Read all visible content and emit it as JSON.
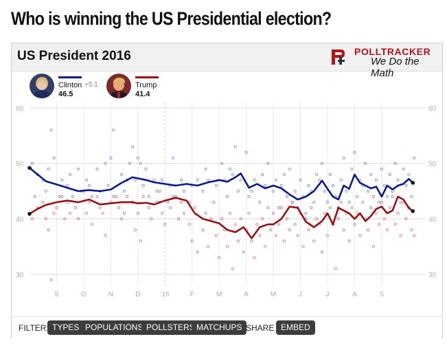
{
  "headline": "Who is winning the US Presidential election?",
  "card": {
    "title": "US President 2016",
    "logo": {
      "name": "POLLTRACKER",
      "tagline": "We Do the Math"
    }
  },
  "candidates": [
    {
      "name": "Clinton",
      "value": "46.5",
      "lead": "+5.1",
      "color": "#0b1a8c",
      "avatar_color": "#5a6a8a",
      "icon": "clinton-avatar"
    },
    {
      "name": "Trump",
      "value": "41.4",
      "lead": "",
      "color": "#9b0e12",
      "avatar_color": "#b7784f",
      "icon": "trump-avatar"
    }
  ],
  "filter_bar": {
    "filter_label": "FILTER:",
    "filters": [
      "TYPES",
      "POPULATIONS",
      "POLLSTERS",
      "MATCHUPS"
    ],
    "share_label": "SHARE :",
    "share_button": "EMBED"
  },
  "chart_data": {
    "type": "line",
    "title": "US President 2016",
    "ylim": [
      28,
      61
    ],
    "yticks": [
      30,
      40,
      50,
      60
    ],
    "grid": true,
    "xlim": [
      0,
      14.6
    ],
    "x_ticks": [
      {
        "x": 1,
        "label": "S"
      },
      {
        "x": 2,
        "label": "O"
      },
      {
        "x": 3,
        "label": "N"
      },
      {
        "x": 4,
        "label": "D"
      },
      {
        "x": 5,
        "label": "'16"
      },
      {
        "x": 6,
        "label": "F"
      },
      {
        "x": 7,
        "label": "M"
      },
      {
        "x": 8,
        "label": "A"
      },
      {
        "x": 9,
        "label": "M"
      },
      {
        "x": 10,
        "label": "J"
      },
      {
        "x": 11,
        "label": "J"
      },
      {
        "x": 12,
        "label": "A"
      },
      {
        "x": 13,
        "label": "S"
      }
    ],
    "series": [
      {
        "name": "Clinton",
        "color": "#0b1a8c",
        "x": [
          0,
          0.3,
          0.6,
          1,
          1.4,
          1.8,
          2.2,
          2.6,
          3,
          3.4,
          3.8,
          4,
          4.3,
          4.6,
          5,
          5.4,
          5.8,
          6.2,
          6.6,
          7,
          7.3,
          7.6,
          7.8,
          8.1,
          8.4,
          8.7,
          9,
          9.3,
          9.6,
          9.9,
          10.2,
          10.5,
          10.8,
          11,
          11.2,
          11.4,
          11.6,
          11.8,
          12,
          12.2,
          12.4,
          12.6,
          12.8,
          13,
          13.2,
          13.4,
          13.6,
          13.8,
          14.0,
          14.15
        ],
        "values": [
          49.2,
          48.0,
          46.8,
          46.2,
          45.6,
          45.0,
          45.2,
          45.0,
          45.3,
          46.5,
          47.5,
          47.3,
          47.0,
          46.6,
          46.3,
          46.0,
          46.3,
          46.0,
          46.6,
          47.0,
          46.7,
          47.5,
          48.2,
          45.6,
          46.3,
          45.5,
          46.0,
          45.5,
          44.4,
          43.5,
          44.0,
          45.0,
          46.9,
          45.4,
          44.0,
          43.5,
          46.0,
          45.4,
          48.0,
          46.5,
          46.0,
          45.5,
          45.8,
          44.0,
          46.0,
          45.3,
          46.0,
          46.3,
          47.2,
          46.5
        ]
      },
      {
        "name": "Trump",
        "color": "#9b0e12",
        "x": [
          0,
          0.3,
          0.6,
          1,
          1.4,
          1.8,
          2.2,
          2.6,
          3,
          3.4,
          3.8,
          4,
          4.3,
          4.6,
          5,
          5.4,
          5.8,
          6.1,
          6.4,
          6.7,
          7,
          7.3,
          7.6,
          7.9,
          8.2,
          8.5,
          8.8,
          9,
          9.3,
          9.6,
          9.9,
          10.2,
          10.5,
          10.8,
          11,
          11.2,
          11.4,
          11.6,
          11.8,
          12,
          12.2,
          12.4,
          12.6,
          12.8,
          13,
          13.2,
          13.4,
          13.6,
          13.8,
          14.0,
          14.15
        ],
        "values": [
          40.9,
          41.8,
          42.5,
          43.0,
          43.3,
          43.0,
          43.5,
          42.6,
          42.8,
          43.0,
          43.0,
          42.8,
          42.9,
          42.6,
          43.3,
          43.8,
          43.3,
          41.0,
          40.0,
          39.6,
          39.2,
          38.0,
          37.6,
          38.5,
          36.5,
          38.5,
          39.0,
          39.0,
          40.0,
          42.2,
          42.0,
          39.5,
          38.5,
          39.6,
          41.0,
          39.0,
          42.0,
          41.5,
          41.0,
          40.0,
          41.0,
          39.6,
          40.5,
          41.8,
          42.2,
          41.0,
          41.5,
          44.0,
          43.5,
          42.0,
          41.4
        ]
      }
    ],
    "polls": {
      "Clinton": [
        [
          0.1,
          50
        ],
        [
          0.3,
          48
        ],
        [
          0.5,
          47
        ],
        [
          0.6,
          45
        ],
        [
          0.7,
          49
        ],
        [
          0.8,
          56
        ],
        [
          0.9,
          51
        ],
        [
          1.1,
          44
        ],
        [
          1.2,
          47
        ],
        [
          1.4,
          46
        ],
        [
          1.5,
          48
        ],
        [
          1.6,
          44
        ],
        [
          1.8,
          49
        ],
        [
          1.9,
          45
        ],
        [
          2.1,
          47
        ],
        [
          2.2,
          46
        ],
        [
          2.3,
          44
        ],
        [
          2.5,
          49
        ],
        [
          2.6,
          45
        ],
        [
          2.8,
          50
        ],
        [
          2.9,
          46
        ],
        [
          3.0,
          51
        ],
        [
          3.1,
          56
        ],
        [
          3.2,
          44
        ],
        [
          3.4,
          48
        ],
        [
          3.5,
          45
        ],
        [
          3.6,
          47
        ],
        [
          3.7,
          50
        ],
        [
          3.8,
          53
        ],
        [
          3.9,
          47
        ],
        [
          4.0,
          51
        ],
        [
          4.1,
          50
        ],
        [
          4.2,
          46
        ],
        [
          4.3,
          49
        ],
        [
          4.4,
          44
        ],
        [
          4.6,
          47
        ],
        [
          4.7,
          45
        ],
        [
          4.8,
          43
        ],
        [
          4.9,
          47
        ],
        [
          5.1,
          43
        ],
        [
          5.2,
          46
        ],
        [
          5.3,
          51
        ],
        [
          5.4,
          44
        ],
        [
          5.6,
          47
        ],
        [
          5.7,
          45
        ],
        [
          5.9,
          43
        ],
        [
          6.0,
          46
        ],
        [
          6.2,
          47
        ],
        [
          6.4,
          45
        ],
        [
          6.5,
          49
        ],
        [
          6.6,
          47
        ],
        [
          6.8,
          43
        ],
        [
          6.9,
          46
        ],
        [
          7.1,
          50
        ],
        [
          7.2,
          47
        ],
        [
          7.3,
          44
        ],
        [
          7.4,
          49
        ],
        [
          7.5,
          48
        ],
        [
          7.6,
          53
        ],
        [
          7.7,
          45
        ],
        [
          7.8,
          47
        ],
        [
          8.0,
          52
        ],
        [
          8.1,
          44
        ],
        [
          8.2,
          45
        ],
        [
          8.3,
          47
        ],
        [
          8.5,
          43
        ],
        [
          8.6,
          48
        ],
        [
          8.7,
          46
        ],
        [
          8.8,
          50
        ],
        [
          9.0,
          45
        ],
        [
          9.1,
          47
        ],
        [
          9.2,
          42
        ],
        [
          9.3,
          46
        ],
        [
          9.4,
          48
        ],
        [
          9.5,
          44
        ],
        [
          9.6,
          49
        ],
        [
          9.7,
          43
        ],
        [
          9.8,
          45
        ],
        [
          9.9,
          42
        ],
        [
          10.0,
          47
        ],
        [
          10.1,
          44
        ],
        [
          10.2,
          41
        ],
        [
          10.3,
          46
        ],
        [
          10.4,
          45
        ],
        [
          10.5,
          43
        ],
        [
          10.6,
          48
        ],
        [
          10.7,
          47
        ],
        [
          10.8,
          50
        ],
        [
          10.9,
          45
        ],
        [
          11.0,
          43
        ],
        [
          11.1,
          48
        ],
        [
          11.2,
          46
        ],
        [
          11.3,
          44
        ],
        [
          11.4,
          42
        ],
        [
          11.5,
          47
        ],
        [
          11.6,
          51
        ],
        [
          11.7,
          45
        ],
        [
          11.8,
          43
        ],
        [
          11.9,
          49
        ],
        [
          12.0,
          52
        ],
        [
          12.1,
          44
        ],
        [
          12.2,
          47
        ],
        [
          12.3,
          46
        ],
        [
          12.4,
          50
        ],
        [
          12.5,
          45
        ],
        [
          12.6,
          48
        ],
        [
          12.7,
          44
        ],
        [
          12.8,
          47
        ],
        [
          12.9,
          43
        ],
        [
          13.0,
          49
        ],
        [
          13.1,
          46
        ],
        [
          13.2,
          44
        ],
        [
          13.3,
          48
        ],
        [
          13.4,
          45
        ],
        [
          13.5,
          50
        ],
        [
          13.6,
          47
        ],
        [
          13.7,
          43
        ],
        [
          13.8,
          49
        ],
        [
          13.9,
          46
        ],
        [
          14.0,
          48
        ],
        [
          14.1,
          44
        ],
        [
          14.2,
          51
        ]
      ],
      "Trump": [
        [
          0.1,
          40
        ],
        [
          0.2,
          44
        ],
        [
          0.3,
          42
        ],
        [
          0.5,
          43
        ],
        [
          0.6,
          40
        ],
        [
          0.7,
          38
        ],
        [
          0.8,
          29
        ],
        [
          0.9,
          41
        ],
        [
          1.0,
          42
        ],
        [
          1.2,
          44
        ],
        [
          1.3,
          40
        ],
        [
          1.4,
          43
        ],
        [
          1.5,
          41
        ],
        [
          1.7,
          42
        ],
        [
          1.8,
          40
        ],
        [
          2.0,
          45
        ],
        [
          2.1,
          41
        ],
        [
          2.2,
          43
        ],
        [
          2.3,
          39
        ],
        [
          2.5,
          44
        ],
        [
          2.6,
          42
        ],
        [
          2.7,
          41
        ],
        [
          2.8,
          37
        ],
        [
          3.0,
          43
        ],
        [
          3.1,
          44
        ],
        [
          3.3,
          42
        ],
        [
          3.4,
          40
        ],
        [
          3.5,
          41
        ],
        [
          3.6,
          44
        ],
        [
          3.8,
          43
        ],
        [
          3.9,
          38
        ],
        [
          4.0,
          41
        ],
        [
          4.1,
          36
        ],
        [
          4.2,
          44
        ],
        [
          4.4,
          42
        ],
        [
          4.5,
          40
        ],
        [
          4.7,
          43
        ],
        [
          4.8,
          45
        ],
        [
          4.9,
          41
        ],
        [
          5.0,
          39
        ],
        [
          5.2,
          42
        ],
        [
          5.3,
          44
        ],
        [
          5.5,
          40
        ],
        [
          5.6,
          43
        ],
        [
          5.7,
          41
        ],
        [
          5.9,
          39
        ],
        [
          6.0,
          36
        ],
        [
          6.1,
          42
        ],
        [
          6.2,
          34
        ],
        [
          6.4,
          38
        ],
        [
          6.5,
          41
        ],
        [
          6.6,
          35
        ],
        [
          6.7,
          40
        ],
        [
          6.9,
          37
        ],
        [
          7.0,
          33
        ],
        [
          7.1,
          40
        ],
        [
          7.2,
          38
        ],
        [
          7.3,
          35
        ],
        [
          7.4,
          41
        ],
        [
          7.5,
          31
        ],
        [
          7.6,
          39
        ],
        [
          7.7,
          36
        ],
        [
          7.8,
          40
        ],
        [
          7.9,
          34
        ],
        [
          8.0,
          38
        ],
        [
          8.1,
          41
        ],
        [
          8.2,
          36
        ],
        [
          8.3,
          33
        ],
        [
          8.4,
          39
        ],
        [
          8.5,
          37
        ],
        [
          8.6,
          40
        ],
        [
          8.7,
          35
        ],
        [
          8.8,
          42
        ],
        [
          8.9,
          38
        ],
        [
          9.0,
          41
        ],
        [
          9.1,
          37
        ],
        [
          9.2,
          39
        ],
        [
          9.3,
          42
        ],
        [
          9.4,
          36
        ],
        [
          9.5,
          40
        ],
        [
          9.6,
          38
        ],
        [
          9.7,
          43
        ],
        [
          9.8,
          39
        ],
        [
          9.9,
          37
        ],
        [
          10.0,
          41
        ],
        [
          10.1,
          35
        ],
        [
          10.2,
          40
        ],
        [
          10.3,
          38
        ],
        [
          10.4,
          42
        ],
        [
          10.5,
          36
        ],
        [
          10.6,
          40
        ],
        [
          10.7,
          39
        ],
        [
          10.8,
          34
        ],
        [
          10.9,
          41
        ],
        [
          11.0,
          37
        ],
        [
          11.1,
          42
        ],
        [
          11.2,
          39
        ],
        [
          11.3,
          31
        ],
        [
          11.4,
          40
        ],
        [
          11.5,
          43
        ],
        [
          11.6,
          38
        ],
        [
          11.7,
          41
        ],
        [
          11.8,
          36
        ],
        [
          11.9,
          42
        ],
        [
          12.0,
          39
        ],
        [
          12.1,
          41
        ],
        [
          12.2,
          37
        ],
        [
          12.3,
          43
        ],
        [
          12.4,
          40
        ],
        [
          12.5,
          38
        ],
        [
          12.6,
          42
        ],
        [
          12.7,
          35
        ],
        [
          12.8,
          41
        ],
        [
          12.9,
          39
        ],
        [
          13.0,
          43
        ],
        [
          13.1,
          40
        ],
        [
          13.2,
          38
        ],
        [
          13.3,
          42
        ],
        [
          13.4,
          44
        ],
        [
          13.5,
          39
        ],
        [
          13.6,
          41
        ],
        [
          13.7,
          37
        ],
        [
          13.8,
          43
        ],
        [
          13.9,
          40
        ],
        [
          14.0,
          42
        ],
        [
          14.1,
          38
        ],
        [
          14.2,
          37
        ]
      ]
    }
  }
}
